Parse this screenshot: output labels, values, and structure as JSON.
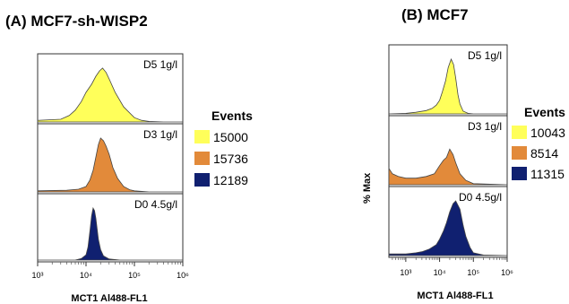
{
  "chart_data": [
    {
      "type": "area",
      "title": "(A) MCF7-sh-WISP2",
      "xlabel": "MCT1 Al488-FL1",
      "ylabel": "",
      "x_scale": "log",
      "xlim": [
        1000,
        1000000
      ],
      "x_tick_labels": [
        "10³",
        "10⁴",
        "10⁵",
        "10⁶"
      ],
      "legend": {
        "title": "Events",
        "entries": [
          {
            "label": "15000",
            "color": "#ffff5a"
          },
          {
            "label": "15736",
            "color": "#e28a3a"
          },
          {
            "label": "12189",
            "color": "#102070"
          }
        ]
      },
      "panels": [
        {
          "label": "D5 1g/l",
          "color": "#ffff5a",
          "x": [
            1000,
            3000,
            4500,
            6000,
            8000,
            10000,
            13000,
            16000,
            19000,
            22000,
            26000,
            30000,
            40000,
            60000,
            100000,
            140000,
            200000,
            400000,
            1000000
          ],
          "y": [
            0.03,
            0.05,
            0.12,
            0.22,
            0.38,
            0.55,
            0.7,
            0.85,
            0.95,
            1.0,
            0.92,
            0.8,
            0.55,
            0.28,
            0.08,
            0.03,
            0.01,
            0.0,
            0.0
          ]
        },
        {
          "label": "D3 1g/l",
          "color": "#e28a3a",
          "x": [
            1000,
            4000,
            7000,
            10000,
            12000,
            14000,
            16000,
            18000,
            20000,
            23000,
            26000,
            30000,
            36000,
            45000,
            60000,
            80000,
            100000,
            200000,
            1000000
          ],
          "y": [
            0.02,
            0.03,
            0.05,
            0.1,
            0.22,
            0.4,
            0.65,
            0.88,
            1.0,
            0.95,
            0.85,
            0.7,
            0.45,
            0.25,
            0.1,
            0.04,
            0.02,
            0.0,
            0.0
          ]
        },
        {
          "label": "D0 4.5g/l",
          "color": "#102070",
          "x": [
            1000,
            6000,
            8000,
            10000,
            11000,
            12000,
            13000,
            14000,
            15000,
            16000,
            17000,
            18000,
            20000,
            23000,
            30000,
            50000,
            1000000
          ],
          "y": [
            0.0,
            0.0,
            0.03,
            0.1,
            0.25,
            0.55,
            0.85,
            1.0,
            0.95,
            0.8,
            0.6,
            0.4,
            0.2,
            0.08,
            0.02,
            0.0,
            0.0
          ]
        }
      ]
    },
    {
      "type": "area",
      "title": "(B) MCF7",
      "xlabel": "MCT1 Al488-FL1",
      "ylabel": "% Max",
      "x_scale": "log",
      "xlim": [
        316,
        1000000
      ],
      "x_tick_labels": [
        "10³",
        "10⁴",
        "10⁵",
        "10⁶"
      ],
      "legend": {
        "title": "Events",
        "entries": [
          {
            "label": "10043",
            "color": "#ffff5a"
          },
          {
            "label": "8514",
            "color": "#e28a3a"
          },
          {
            "label": "11315",
            "color": "#102070"
          }
        ]
      },
      "panels": [
        {
          "label": "D5 1g/l",
          "color": "#ffff5a",
          "x": [
            316,
            1000,
            2000,
            4000,
            6000,
            8000,
            10000,
            12000,
            15000,
            18000,
            22000,
            26000,
            30000,
            35000,
            40000,
            50000,
            70000,
            100000,
            1000000
          ],
          "y": [
            0.0,
            0.01,
            0.03,
            0.06,
            0.1,
            0.16,
            0.25,
            0.4,
            0.6,
            0.85,
            1.0,
            0.9,
            0.65,
            0.35,
            0.18,
            0.05,
            0.01,
            0.0,
            0.0
          ]
        },
        {
          "label": "D3 1g/l",
          "color": "#e28a3a",
          "x": [
            316,
            400,
            600,
            1000,
            2000,
            4000,
            7000,
            10000,
            13000,
            16000,
            20000,
            25000,
            30000,
            40000,
            60000,
            100000,
            1000000
          ],
          "y": [
            0.3,
            0.2,
            0.15,
            0.12,
            0.12,
            0.15,
            0.2,
            0.35,
            0.45,
            0.5,
            0.65,
            0.55,
            0.4,
            0.2,
            0.08,
            0.02,
            0.0
          ]
        },
        {
          "label": "D0 4.5g/l",
          "color": "#102070",
          "x": [
            316,
            1000,
            2000,
            3000,
            5000,
            8000,
            10000,
            13000,
            16000,
            20000,
            25000,
            30000,
            40000,
            50000,
            60000,
            80000,
            100000,
            200000,
            1000000
          ],
          "y": [
            0.03,
            0.03,
            0.05,
            0.07,
            0.12,
            0.2,
            0.3,
            0.45,
            0.6,
            0.8,
            0.95,
            1.0,
            0.85,
            0.55,
            0.35,
            0.15,
            0.05,
            0.01,
            0.0
          ]
        }
      ]
    }
  ]
}
